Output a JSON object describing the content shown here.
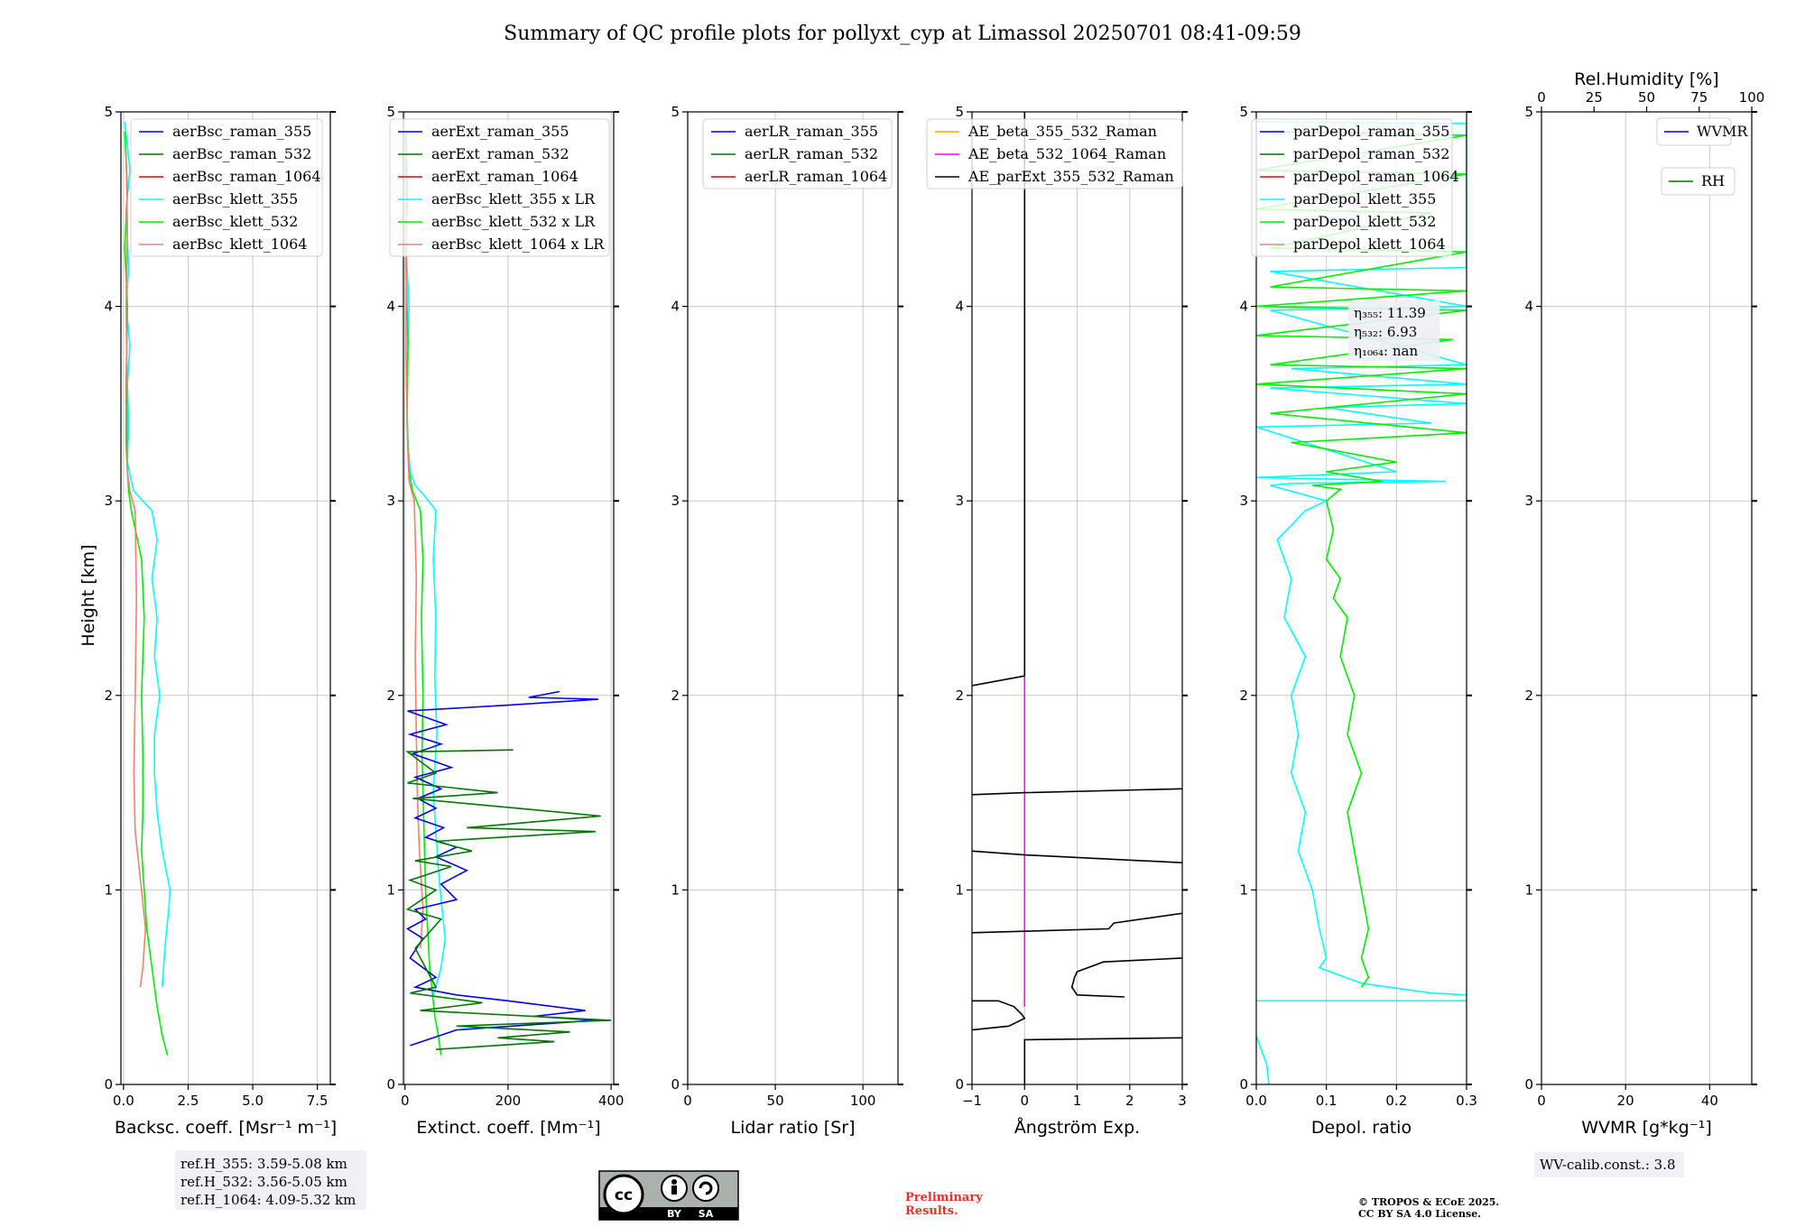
{
  "title": "Summary of QC profile plots for pollyxt_cyp at Limassol 20250701 08:41-09:59",
  "ylabel": "Height [km]",
  "colors": {
    "blue": "#0000ee",
    "green": "#007700",
    "red": "#ee0000",
    "cyan": "#00ffff",
    "lime": "#00ee00",
    "salmon": "#f08070",
    "orange": "#ffa500",
    "magenta": "#ff00ff",
    "black": "#000000"
  },
  "chart_data": [
    {
      "type": "line",
      "name": "backscatter",
      "xlabel": "Backsc. coeff. [Msr⁻¹ m⁻¹]",
      "xlim": [
        -0.1,
        8.0
      ],
      "ylim": [
        0,
        5
      ],
      "xticks": [
        0,
        2.5,
        5,
        7.5
      ],
      "xticklabels": [
        "0.0",
        "2.5",
        "5.0",
        "7.5"
      ],
      "grid": true,
      "legend": [
        "aerBsc_raman_355",
        "aerBsc_raman_532",
        "aerBsc_raman_1064",
        "aerBsc_klett_355",
        "aerBsc_klett_532",
        "aerBsc_klett_1064"
      ],
      "legend_colors": [
        "blue",
        "green",
        "red",
        "cyan",
        "lime",
        "salmon"
      ],
      "series": [
        {
          "name": "aerBsc_klett_355",
          "color": "cyan",
          "x": [
            0.05,
            0.25,
            0.1,
            0.2,
            0.1,
            0.25,
            0.15,
            0.2,
            0.15,
            0.3,
            0.4,
            1.1,
            1.3,
            1.1,
            1.3,
            1.2,
            1.4,
            1.2,
            1.2,
            1.3,
            1.5,
            1.8,
            1.75,
            1.6,
            1.5
          ],
          "y": [
            4.95,
            4.7,
            4.5,
            4.2,
            4.0,
            3.8,
            3.6,
            3.4,
            3.2,
            3.1,
            3.05,
            2.95,
            2.8,
            2.6,
            2.4,
            2.2,
            2.0,
            1.8,
            1.6,
            1.4,
            1.2,
            1.0,
            0.9,
            0.7,
            0.5
          ]
        },
        {
          "name": "aerBsc_klett_532",
          "color": "lime",
          "x": [
            0.05,
            0.15,
            0.05,
            0.15,
            0.1,
            0.1,
            0.15,
            0.2,
            0.3,
            0.7,
            0.8,
            0.7,
            0.75,
            0.75,
            0.7,
            0.8,
            0.9,
            1.1,
            1.3,
            1.5,
            1.7
          ],
          "y": [
            4.9,
            4.6,
            4.3,
            4.0,
            3.6,
            3.3,
            3.15,
            3.05,
            2.95,
            2.7,
            2.4,
            2.0,
            1.7,
            1.4,
            1.2,
            1.0,
            0.8,
            0.6,
            0.4,
            0.25,
            0.15
          ]
        },
        {
          "name": "aerBsc_klett_1064",
          "color": "salmon",
          "x": [
            0.1,
            0.15,
            0.1,
            0.15,
            0.15,
            0.25,
            0.45,
            0.5,
            0.45,
            0.4,
            0.45,
            0.7,
            0.85,
            0.75,
            0.65
          ],
          "y": [
            4.8,
            4.4,
            4.0,
            3.5,
            3.15,
            3.05,
            2.95,
            2.5,
            2.0,
            1.6,
            1.3,
            1.0,
            0.8,
            0.6,
            0.5
          ]
        }
      ]
    },
    {
      "type": "line",
      "name": "extinction",
      "xlabel": "Extinct. coeff. [Mm⁻¹]",
      "xlim": [
        -3,
        405
      ],
      "ylim": [
        0,
        5
      ],
      "xticks": [
        0,
        200,
        400
      ],
      "xticklabels": [
        "0",
        "200",
        "400"
      ],
      "grid": true,
      "legend": [
        "aerExt_raman_355",
        "aerExt_raman_532",
        "aerExt_raman_1064",
        "aerBsc_klett_355 x LR",
        "aerBsc_klett_532 x LR",
        "aerBsc_klett_1064 x LR"
      ],
      "legend_colors": [
        "blue",
        "green",
        "red",
        "cyan",
        "lime",
        "salmon"
      ],
      "series": [
        {
          "name": "aerBsc_klett_355 x LR",
          "color": "cyan",
          "x": [
            2,
            5,
            2,
            8,
            3,
            6,
            10,
            20,
            40,
            60,
            55,
            60,
            58,
            62,
            55,
            60,
            65,
            72,
            78,
            70,
            55
          ],
          "y": [
            4.9,
            4.6,
            4.3,
            4.0,
            3.6,
            3.3,
            3.15,
            3.08,
            3.02,
            2.95,
            2.7,
            2.4,
            2.1,
            1.8,
            1.5,
            1.3,
            1.1,
            0.9,
            0.75,
            0.6,
            0.45
          ]
        },
        {
          "name": "aerBsc_klett_532 x LR",
          "color": "lime",
          "x": [
            2,
            4,
            2,
            6,
            4,
            8,
            15,
            30,
            35,
            32,
            35,
            33,
            36,
            38,
            40,
            44,
            48,
            52,
            58,
            65,
            70
          ],
          "y": [
            4.9,
            4.6,
            4.2,
            3.8,
            3.4,
            3.15,
            3.05,
            2.95,
            2.7,
            2.4,
            2.0,
            1.7,
            1.4,
            1.2,
            1.0,
            0.8,
            0.6,
            0.5,
            0.35,
            0.25,
            0.15
          ]
        },
        {
          "name": "aerBsc_klett_1064 x LR",
          "color": "salmon",
          "x": [
            2,
            3,
            2,
            5,
            8,
            18,
            22,
            20,
            22,
            24,
            28,
            35,
            30
          ],
          "y": [
            4.8,
            4.3,
            3.8,
            3.3,
            3.1,
            3.0,
            2.6,
            2.2,
            1.8,
            1.5,
            1.2,
            0.9,
            0.7
          ]
        },
        {
          "name": "aerExt_raman_355",
          "color": "blue",
          "x": [
            300,
            240,
            375,
            200,
            5,
            80,
            10,
            70,
            15,
            90,
            20,
            70,
            25,
            60,
            20,
            75,
            40,
            100,
            60,
            120,
            70,
            100,
            20,
            40,
            5,
            35,
            10,
            60,
            20,
            100,
            200,
            350,
            250,
            370,
            100,
            10
          ],
          "y": [
            2.02,
            1.99,
            1.98,
            1.95,
            1.92,
            1.85,
            1.8,
            1.75,
            1.7,
            1.63,
            1.58,
            1.52,
            1.47,
            1.42,
            1.37,
            1.32,
            1.27,
            1.22,
            1.17,
            1.1,
            1.03,
            0.95,
            0.9,
            0.85,
            0.8,
            0.75,
            0.65,
            0.55,
            0.5,
            0.46,
            0.43,
            0.38,
            0.35,
            0.33,
            0.28,
            0.2
          ]
        },
        {
          "name": "aerExt_raman_532",
          "color": "green",
          "x": [
            210,
            5,
            60,
            5,
            180,
            15,
            380,
            120,
            370,
            60,
            130,
            20,
            90,
            10,
            60,
            5,
            70,
            20,
            60,
            10,
            150,
            30,
            400,
            100,
            320,
            180,
            290,
            60
          ],
          "y": [
            1.72,
            1.71,
            1.6,
            1.55,
            1.5,
            1.47,
            1.38,
            1.32,
            1.3,
            1.25,
            1.2,
            1.15,
            1.12,
            1.05,
            1.0,
            0.9,
            0.85,
            0.7,
            0.5,
            0.47,
            0.42,
            0.38,
            0.33,
            0.3,
            0.27,
            0.24,
            0.22,
            0.18
          ]
        }
      ]
    },
    {
      "type": "line",
      "name": "lidar_ratio",
      "xlabel": "Lidar ratio [Sr]",
      "xlim": [
        0,
        120
      ],
      "ylim": [
        0,
        5
      ],
      "xticks": [
        0,
        50,
        100
      ],
      "xticklabels": [
        "0",
        "50",
        "100"
      ],
      "grid": true,
      "legend": [
        "aerLR_raman_355",
        "aerLR_raman_532",
        "aerLR_raman_1064"
      ],
      "legend_colors": [
        "blue",
        "green",
        "red"
      ],
      "series": []
    },
    {
      "type": "line",
      "name": "angstrom",
      "xlabel": "Ångström Exp.",
      "xlim": [
        -1,
        3
      ],
      "ylim": [
        0,
        5
      ],
      "xticks": [
        -1,
        0,
        1,
        2,
        3
      ],
      "xticklabels": [
        "−1",
        "0",
        "1",
        "2",
        "3"
      ],
      "grid": true,
      "legend": [
        "AE_beta_355_532_Raman",
        "AE_beta_532_1064_Raman",
        "AE_parExt_355_532_Raman"
      ],
      "legend_colors": [
        "orange",
        "magenta",
        "black"
      ],
      "series": [
        {
          "name": "AE_beta_532_1064_Raman",
          "color": "magenta",
          "x": [
            0,
            0
          ],
          "y": [
            0.4,
            2.1
          ]
        },
        {
          "name": "AE_parExt_355_532_Raman",
          "color": "black",
          "x": [
            0,
            0
          ],
          "y": [
            2.1,
            5.0
          ]
        },
        {
          "name": "AE_parExt_355_532_Raman seg1",
          "color": "black",
          "x": [
            0,
            -1
          ],
          "y": [
            2.1,
            2.05
          ]
        },
        {
          "name": "AE_parExt_355_532_Raman seg2",
          "color": "black",
          "x": [
            -1,
            0,
            3
          ],
          "y": [
            1.49,
            1.5,
            1.52
          ]
        },
        {
          "name": "AE_parExt_355_532_Raman seg3",
          "color": "black",
          "x": [
            -1,
            0,
            3
          ],
          "y": [
            1.2,
            1.18,
            1.14
          ]
        },
        {
          "name": "AE_parExt_355_532_Raman seg4",
          "color": "black",
          "x": [
            -1,
            1.6,
            1.7,
            3
          ],
          "y": [
            0.78,
            0.8,
            0.83,
            0.88
          ]
        },
        {
          "name": "AE_parExt_355_532_Raman seg5",
          "color": "black",
          "x": [
            3,
            1.5,
            1.0,
            0.95,
            0.9,
            0.95,
            1.0,
            1.9
          ],
          "y": [
            0.65,
            0.63,
            0.58,
            0.55,
            0.5,
            0.48,
            0.46,
            0.45
          ]
        },
        {
          "name": "AE_parExt_355_532_Raman seg6",
          "color": "black",
          "x": [
            -1,
            -0.5,
            -0.2,
            -0.05,
            0,
            -0.3,
            -1
          ],
          "y": [
            0.43,
            0.43,
            0.4,
            0.36,
            0.34,
            0.3,
            0.28
          ]
        },
        {
          "name": "AE_parExt_355_532_Raman seg7",
          "color": "black",
          "x": [
            0,
            0,
            3
          ],
          "y": [
            0,
            0.23,
            0.24
          ]
        }
      ]
    },
    {
      "type": "line",
      "name": "depol",
      "xlabel": "Depol. ratio",
      "xlim": [
        0,
        0.3
      ],
      "ylim": [
        0,
        5
      ],
      "xticks": [
        0,
        0.1,
        0.2,
        0.3
      ],
      "xticklabels": [
        "0.0",
        "0.1",
        "0.2",
        "0.3"
      ],
      "grid": true,
      "legend": [
        "parDepol_raman_355",
        "parDepol_raman_532",
        "parDepol_raman_1064",
        "parDepol_klett_355",
        "parDepol_klett_532",
        "parDepol_klett_1064"
      ],
      "legend_colors": [
        "blue",
        "green",
        "red",
        "cyan",
        "lime",
        "salmon"
      ],
      "annotation": [
        "η₃₅₅: 11.39",
        "η₅₃₂: 6.93",
        "η₁₀₆₄: nan"
      ],
      "series": [
        {
          "name": "parDepol_klett_355",
          "color": "cyan",
          "x": [
            0.0,
            0.3,
            0.3,
            0.02,
            0.3,
            0.02,
            0.3,
            0.05,
            0.3,
            0.02,
            0.3,
            0.1,
            0.25,
            0.0,
            0.2,
            0.0,
            0.27,
            0.05,
            0.02,
            0.1,
            0.07,
            0.03,
            0.05,
            0.04,
            0.07,
            0.05,
            0.06,
            0.05,
            0.07,
            0.06,
            0.08,
            0.09,
            0.1,
            0.09,
            0.15,
            0.25,
            0.3
          ],
          "y": [
            4.95,
            4.94,
            4.2,
            4.18,
            4.0,
            3.98,
            3.7,
            3.68,
            3.6,
            3.58,
            3.5,
            3.48,
            3.4,
            3.38,
            3.15,
            3.12,
            3.1,
            3.09,
            3.08,
            3.0,
            2.95,
            2.8,
            2.6,
            2.4,
            2.2,
            2.0,
            1.8,
            1.6,
            1.4,
            1.2,
            1.0,
            0.8,
            0.65,
            0.6,
            0.52,
            0.47,
            0.46
          ]
        },
        {
          "name": "parDepol_klett_355 low",
          "color": "cyan",
          "x": [
            0.3,
            0.0
          ],
          "y": [
            0.43,
            0.43
          ]
        },
        {
          "name": "parDepol_klett_355 bottom",
          "color": "cyan",
          "x": [
            0.0,
            0.015,
            0.018
          ],
          "y": [
            0.25,
            0.1,
            0.0
          ]
        },
        {
          "name": "parDepol_klett_532",
          "color": "lime",
          "x": [
            0.0,
            0.3,
            0.0,
            0.3,
            0.0,
            0.25,
            0.02,
            0.3,
            0.02,
            0.3,
            0.0,
            0.3,
            0.0,
            0.28,
            0.02,
            0.3,
            0.0,
            0.3,
            0.02,
            0.3,
            0.05,
            0.2,
            0.1,
            0.18,
            0.08,
            0.12,
            0.1,
            0.11,
            0.1,
            0.12,
            0.11,
            0.13,
            0.12,
            0.14,
            0.13,
            0.15,
            0.13,
            0.14,
            0.15,
            0.16,
            0.15,
            0.16,
            0.15
          ],
          "y": [
            4.9,
            4.88,
            4.7,
            4.68,
            4.5,
            4.48,
            4.3,
            4.28,
            4.1,
            4.08,
            4.0,
            3.98,
            3.85,
            3.83,
            3.7,
            3.68,
            3.6,
            3.55,
            3.45,
            3.35,
            3.3,
            3.2,
            3.15,
            3.1,
            3.08,
            3.06,
            3.0,
            2.85,
            2.7,
            2.6,
            2.5,
            2.4,
            2.2,
            2.0,
            1.8,
            1.6,
            1.4,
            1.2,
            1.0,
            0.8,
            0.65,
            0.55,
            0.5
          ]
        }
      ]
    },
    {
      "type": "line",
      "name": "wvmr",
      "xlabel": "WVMR [g*kg⁻¹]",
      "xlim": [
        0,
        50
      ],
      "ylim": [
        0,
        5
      ],
      "xticks": [
        0,
        20,
        40
      ],
      "xticklabels": [
        "0",
        "20",
        "40"
      ],
      "top_label": "Rel.Humidity [%]",
      "top_xlim": [
        0,
        100
      ],
      "top_xticks": [
        0,
        25,
        50,
        75,
        100
      ],
      "top_xticklabels": [
        "0",
        "25",
        "50",
        "75",
        "100"
      ],
      "grid": true,
      "legend": [
        "WVMR",
        "RH"
      ],
      "legend_colors": [
        "blue",
        "green"
      ],
      "series": []
    }
  ],
  "yticks": [
    0,
    1,
    2,
    3,
    4,
    5
  ],
  "yticklabels": [
    "0",
    "1",
    "2",
    "3",
    "4",
    "5"
  ],
  "footer": {
    "refh": [
      "ref.H_355: 3.59-5.08 km",
      "ref.H_532: 3.56-5.05 km",
      "ref.H_1064: 4.09-5.32 km"
    ],
    "license_badge": [
      "cc",
      "BY",
      "SA"
    ],
    "preliminary": [
      "Preliminary",
      "Results."
    ],
    "copyright": [
      "© TROPOS & ECoE 2025.",
      "CC BY SA 4.0 License."
    ],
    "wv_calib": "WV-calib.const.: 3.8"
  }
}
